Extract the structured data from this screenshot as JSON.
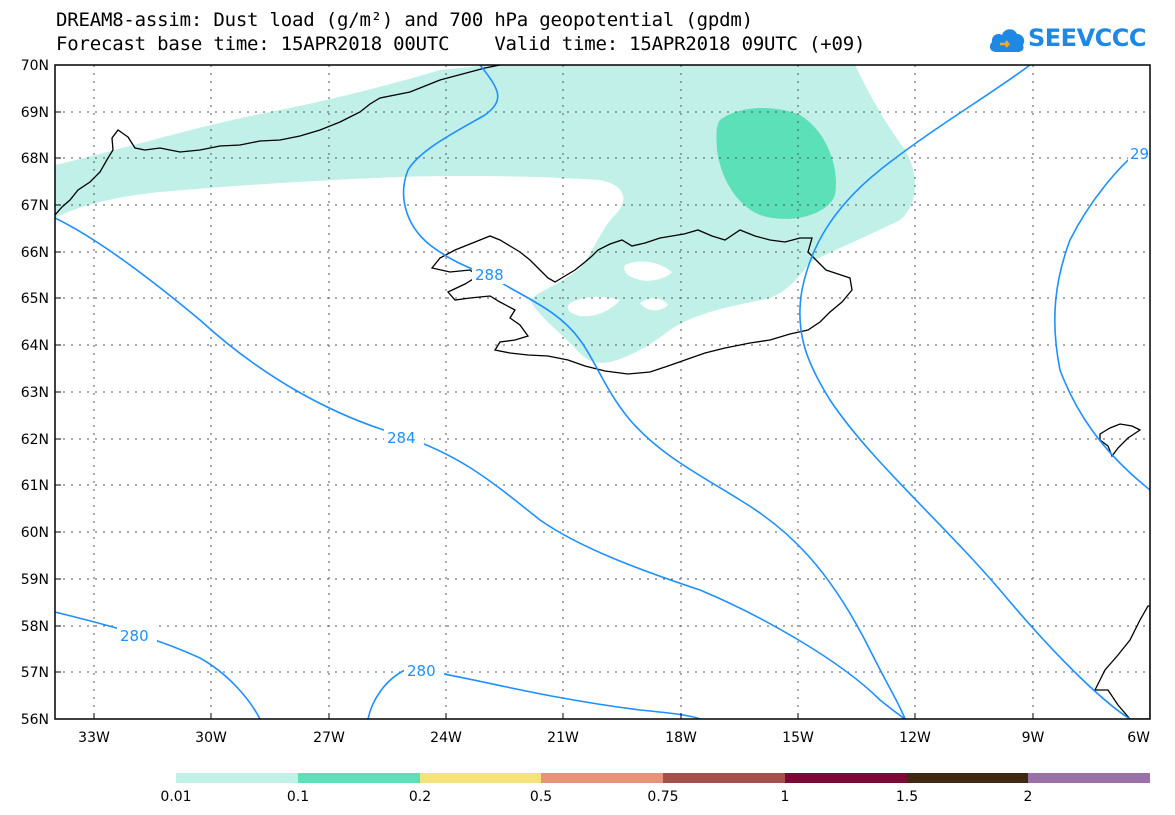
{
  "title": {
    "line1": "DREAM8-assim: Dust load (g/m²) and 700 hPa geopotential (gpdm)",
    "line2": "Forecast base time: 15APR2018 00UTC    Valid time: 15APR2018 09UTC (+09)"
  },
  "logo": {
    "text": "SEEVCCC",
    "icon": "cloud-icon",
    "color": "#1e88e5"
  },
  "map": {
    "lat_labels": [
      "70N",
      "69N",
      "68N",
      "67N",
      "66N",
      "65N",
      "64N",
      "63N",
      "62N",
      "61N",
      "60N",
      "59N",
      "58N",
      "57N",
      "56N"
    ],
    "lon_labels": [
      "33W",
      "30W",
      "27W",
      "24W",
      "21W",
      "18W",
      "15W",
      "12W",
      "9W",
      "6W"
    ],
    "contour_labels": [
      "288",
      "284",
      "280",
      "280",
      "29"
    ],
    "contour_color": "#1e90ff",
    "coast_color": "#000000"
  },
  "colorbar": {
    "labels": [
      "0.01",
      "0.1",
      "0.2",
      "0.5",
      "0.75",
      "1",
      "1.5",
      "2"
    ],
    "colors": [
      "#c1f0e8",
      "#5ce0b8",
      "#f5e27a",
      "#e9927a",
      "#a4504a",
      "#7a0a35",
      "#3e2a14",
      "#9a72a8"
    ]
  }
}
